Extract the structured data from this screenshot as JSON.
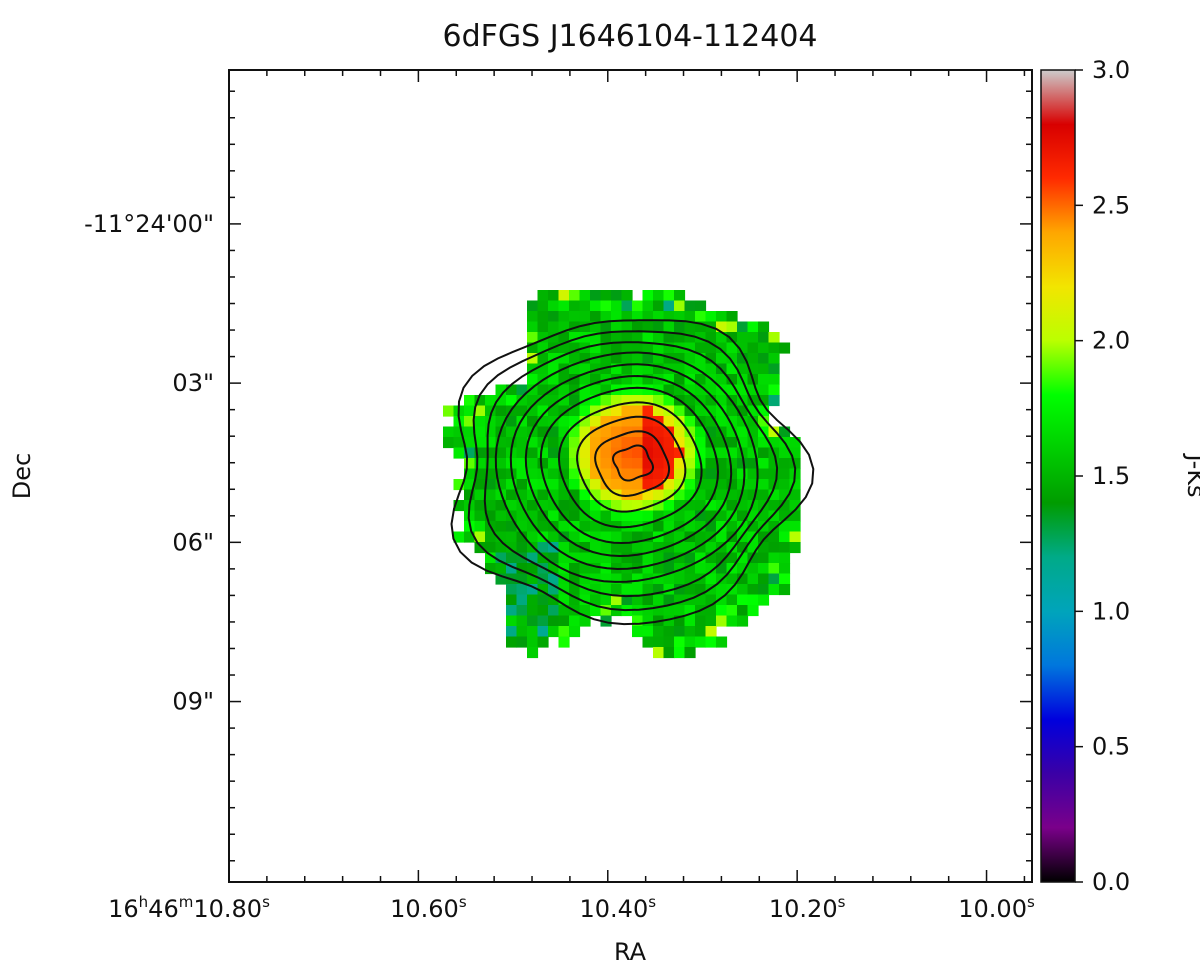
{
  "chart_data": {
    "type": "heatmap",
    "title": "6dFGS J1646104-112404",
    "xlabel": "RA",
    "ylabel": "Dec",
    "colorbar_label": "J-Ks",
    "x_ticks": [
      {
        "h": "16",
        "m": "46",
        "s": "10.80",
        "pos": 0
      },
      {
        "h": "",
        "m": "",
        "s": "10.60",
        "pos": 1
      },
      {
        "h": "",
        "m": "",
        "s": "10.40",
        "pos": 2
      },
      {
        "h": "",
        "m": "",
        "s": "10.20",
        "pos": 3
      },
      {
        "h": "",
        "m": "",
        "s": "10.00",
        "pos": 4
      }
    ],
    "y_ticks": [
      {
        "label": "-11°24'00\"",
        "offset": 0
      },
      {
        "label": "03\"",
        "offset": 3
      },
      {
        "label": "06\"",
        "offset": 6
      },
      {
        "label": "09\"",
        "offset": 9
      }
    ],
    "x_unit_seconds": 0.2,
    "y_range_arcsec": [
      -2.9,
      12.4
    ],
    "x_range_seconds": [
      10.802,
      9.954
    ],
    "colorbar": {
      "range": [
        0.0,
        3.0
      ],
      "ticks": [
        "0.0",
        "0.5",
        "1.0",
        "1.5",
        "2.0",
        "2.5",
        "3.0"
      ],
      "colormap": "nipy_spectral",
      "stops": [
        "#000000",
        "#7a008a",
        "#3b00a6",
        "#0000dd",
        "#0077dd",
        "#00a4bb",
        "#00aa88",
        "#009c00",
        "#00ce00",
        "#00ff00",
        "#bbff00",
        "#f2e500",
        "#ffa600",
        "#ff2a00",
        "#d80000",
        "#cccccc"
      ]
    },
    "color_map_center": {
      "ra_s": 10.38,
      "dec_arcsec": 4.2,
      "value": 2.55
    },
    "color_map_outer_value": 1.55,
    "contour_levels": 11,
    "grid": false
  }
}
